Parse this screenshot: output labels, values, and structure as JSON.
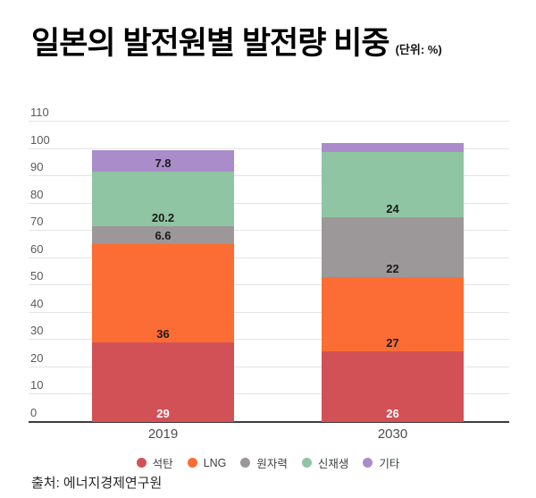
{
  "title": "일본의 발전원별 발전량 비중",
  "unit_label": "(단위: %)",
  "source": "출처: 에너지경제연구원",
  "colors": {
    "grid": "#e4e4e4",
    "axis": "#3c3c3c",
    "tick_label": "#5a5a5a",
    "category_label": "#4d4d4d",
    "data_label_dark": "#1c1c1c",
    "data_label_light": "#ffffff"
  },
  "chart_data": {
    "type": "bar",
    "stacked": true,
    "title": "일본의 발전원별 발전량 비중",
    "unit": "%",
    "categories": [
      "2019",
      "2030"
    ],
    "series": [
      {
        "name": "석탄",
        "color": "#d25157",
        "values": [
          29,
          26
        ],
        "data_labels": [
          "29",
          "26"
        ],
        "label_style": "light"
      },
      {
        "name": "LNG",
        "color": "#fb6d34",
        "values": [
          36,
          27
        ],
        "data_labels": [
          "36",
          "27"
        ],
        "label_style": "dark"
      },
      {
        "name": "원자력",
        "color": "#9c9798",
        "values": [
          6.6,
          22
        ],
        "data_labels": [
          "6.6",
          "22"
        ],
        "label_style": "dark"
      },
      {
        "name": "신재생",
        "color": "#8fc5a3",
        "values": [
          20.2,
          24
        ],
        "data_labels": [
          "20.2",
          "24"
        ],
        "label_style": "dark"
      },
      {
        "name": "기타",
        "color": "#a98cc9",
        "values": [
          7.8,
          3
        ],
        "data_labels": [
          "7.8",
          ""
        ],
        "label_style": "dark"
      }
    ],
    "ylim": [
      0,
      110
    ],
    "ytick_interval": 10,
    "grid": true,
    "legend_position": "bottom"
  }
}
